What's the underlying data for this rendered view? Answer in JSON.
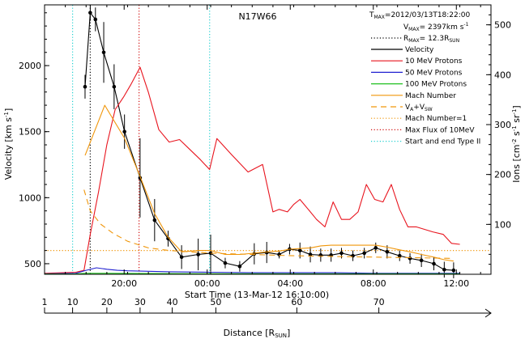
{
  "chart_data": {
    "type": "line",
    "title": "N17W66",
    "annotations": {
      "tmax": "T<sub>MAX</sub>=2012/03/13T18:22:00",
      "tmax_plain": "TMAX=2012/03/13T18:22:00",
      "vmax_plain": "VMAX= 2397km s-1",
      "rmax_plain": "RMAX= 12.3RSUN"
    },
    "xlabel": "Start Time (13-Mar-12 16:10:00)",
    "ylabel_left": "Velocity [km s-1]",
    "ylabel_right": "Ions [cm-2 s-1 sr-1]",
    "distance_label": "Distance [RSUN]",
    "x_unit": "hours since 16:10 on 13-Mar-12",
    "xlim": [
      0,
      21.5
    ],
    "ylim_left": [
      420,
      2460
    ],
    "ylim_right": [
      0,
      540
    ],
    "x_ticks": [
      {
        "x": 3.833,
        "label": "20:00"
      },
      {
        "x": 7.833,
        "label": "00:00"
      },
      {
        "x": 11.833,
        "label": "04:00"
      },
      {
        "x": 15.833,
        "label": "08:00"
      },
      {
        "x": 19.833,
        "label": "12:00"
      }
    ],
    "y_ticks_left": [
      500,
      1000,
      1500,
      2000
    ],
    "y_ticks_right": [
      100,
      200,
      300,
      400,
      500
    ],
    "distance_ticks": [
      {
        "x": 0.0,
        "label": "1"
      },
      {
        "x": 1.35,
        "label": "10"
      },
      {
        "x": 3.0,
        "label": "20"
      },
      {
        "x": 4.6,
        "label": "30"
      },
      {
        "x": 6.15,
        "label": "40"
      },
      {
        "x": 8.25,
        "label": "50"
      },
      {
        "x": 12.15,
        "label": "60"
      },
      {
        "x": 16.1,
        "label": "70"
      }
    ],
    "legend": [
      {
        "key": "tmax",
        "text": "TMAX=2012/03/13T18:22:00",
        "style": "none",
        "color": "#000000"
      },
      {
        "key": "vmax",
        "text": "VMAX= 2397km s-1",
        "style": "none",
        "color": "#000000"
      },
      {
        "key": "rmax",
        "text": "RMAX= 12.3RSUN",
        "style": "dotted",
        "color": "#000000"
      },
      {
        "key": "velocity",
        "text": "Velocity",
        "style": "solid",
        "color": "#000000"
      },
      {
        "key": "p10",
        "text": "10 MeV Protons",
        "style": "solid",
        "color": "#e8141e"
      },
      {
        "key": "p50",
        "text": "50 MeV Protons",
        "style": "solid",
        "color": "#2020d0"
      },
      {
        "key": "p100",
        "text": "100 MeV Protons",
        "style": "solid",
        "color": "#20c020"
      },
      {
        "key": "mach",
        "text": "Mach Number",
        "style": "solid",
        "color": "#f0960a"
      },
      {
        "key": "va",
        "text": "VA+VSW",
        "style": "dashed",
        "color": "#f0960a"
      },
      {
        "key": "mach1",
        "text": "Mach Number=1",
        "style": "dotted",
        "color": "#f0960a"
      },
      {
        "key": "maxflux",
        "text": "Max Flux of 10MeV",
        "style": "dotted",
        "color": "#d01010"
      },
      {
        "key": "typeii",
        "text": "Start and end Type II",
        "style": "dotted",
        "color": "#20d0d0"
      }
    ],
    "vlines": [
      {
        "x": 1.35,
        "color": "#20d0d0"
      },
      {
        "x": 7.95,
        "color": "#20d0d0"
      },
      {
        "x": 2.2,
        "color": "#000000"
      },
      {
        "x": 4.55,
        "color": "#d01010"
      }
    ],
    "mach_one_level": 600,
    "series": [
      {
        "name": "Velocity",
        "color": "#000000",
        "axis": "left",
        "x": [
          1.95,
          2.2,
          2.45,
          2.85,
          3.35,
          3.85,
          4.6,
          5.3,
          5.95,
          6.6,
          7.4,
          8.0,
          8.7,
          9.4,
          10.1,
          10.7,
          11.3,
          11.8,
          12.3,
          12.8,
          13.3,
          13.8,
          14.3,
          14.85,
          15.4,
          15.95,
          16.5,
          17.1,
          17.6,
          18.15,
          18.75,
          19.25,
          19.7
        ],
        "values": [
          1840,
          2400,
          2350,
          2100,
          1840,
          1500,
          1150,
          830,
          690,
          550,
          570,
          580,
          505,
          480,
          575,
          585,
          570,
          610,
          600,
          570,
          565,
          565,
          580,
          560,
          580,
          620,
          590,
          560,
          540,
          525,
          500,
          455,
          450
        ],
        "errors": [
          90,
          60,
          90,
          230,
          170,
          130,
          300,
          160,
          60,
          90,
          120,
          140,
          40,
          40,
          80,
          80,
          30,
          40,
          60,
          60,
          50,
          50,
          40,
          40,
          40,
          40,
          50,
          40,
          40,
          50,
          50,
          60,
          60
        ]
      },
      {
        "name": "10 MeV Protons",
        "color": "#e8141e",
        "axis": "right",
        "x": [
          0,
          1.5,
          1.9,
          2.2,
          2.6,
          3.0,
          3.4,
          3.8,
          4.15,
          4.6,
          5.0,
          5.5,
          6.0,
          6.5,
          7.0,
          7.5,
          7.95,
          8.3,
          9.0,
          9.8,
          10.5,
          11.0,
          11.3,
          11.7,
          12.0,
          12.3,
          12.7,
          13.1,
          13.5,
          13.9,
          14.3,
          14.7,
          15.1,
          15.5,
          15.9,
          16.3,
          16.7,
          17.1,
          17.5,
          17.9,
          18.3,
          18.7,
          19.2,
          19.6,
          20.0
        ],
        "values": [
          2,
          4,
          8,
          80,
          165,
          260,
          330,
          355,
          380,
          415,
          365,
          290,
          265,
          270,
          250,
          230,
          210,
          272,
          240,
          205,
          220,
          125,
          130,
          125,
          140,
          150,
          130,
          110,
          95,
          145,
          110,
          110,
          125,
          180,
          150,
          145,
          180,
          130,
          95,
          95,
          90,
          85,
          80,
          62,
          60
        ]
      },
      {
        "name": "50 MeV Protons",
        "color": "#2020d0",
        "axis": "right",
        "x": [
          0,
          1.5,
          2.0,
          2.5,
          3.0,
          3.5,
          4.0,
          5.0,
          6.0,
          8.0,
          10.0,
          12.0,
          14.0,
          16.0,
          18.0,
          20.0
        ],
        "values": [
          1,
          2,
          8,
          13,
          10,
          8,
          7,
          6,
          5,
          4,
          3,
          3,
          3,
          2,
          2,
          2
        ]
      },
      {
        "name": "100 MeV Protons",
        "color": "#20c020",
        "axis": "right",
        "x": [
          0,
          1.5,
          2.0,
          3.0,
          5.0,
          8.0,
          12.0,
          16.0,
          20.0
        ],
        "values": [
          0.5,
          0.8,
          2,
          2,
          1.5,
          1.2,
          1,
          1,
          1
        ]
      },
      {
        "name": "Mach Number",
        "color": "#f0960a",
        "axis": "left",
        "x": [
          1.95,
          2.9,
          3.85,
          4.6,
          5.3,
          5.95,
          6.6,
          7.4,
          8.0,
          8.7,
          9.4,
          10.1,
          10.7,
          11.3,
          11.8,
          12.3,
          12.8,
          13.3,
          13.8,
          14.3,
          14.85,
          15.4,
          15.95,
          16.5,
          17.1,
          17.6,
          18.15,
          18.75,
          19.25,
          19.7
        ],
        "values": [
          1320,
          1700,
          1450,
          1160,
          880,
          700,
          590,
          600,
          600,
          570,
          570,
          580,
          590,
          595,
          610,
          615,
          620,
          635,
          640,
          640,
          640,
          640,
          640,
          625,
          605,
          590,
          570,
          550,
          530,
          520
        ]
      },
      {
        "name": "VA+VSW",
        "color": "#f0960a",
        "axis": "left",
        "dashed": true,
        "x": [
          1.9,
          2.2,
          2.7,
          3.3,
          4.0,
          5.0,
          6.0,
          7.0,
          8.0,
          10.0,
          12.0,
          14.0,
          16.0,
          18.0,
          19.7
        ],
        "values": [
          1060,
          900,
          800,
          730,
          670,
          620,
          600,
          590,
          580,
          570,
          560,
          555,
          550,
          545,
          540
        ]
      }
    ]
  }
}
